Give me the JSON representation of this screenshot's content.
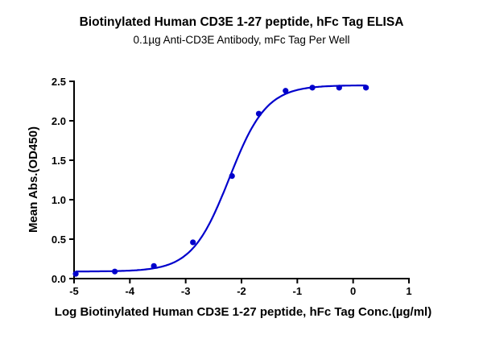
{
  "chart_data": {
    "type": "scatter",
    "title": "Biotinylated Human CD3E 1-27 peptide, hFc Tag ELISA",
    "subtitle": "0.1µg Anti-CD3E Antibody, mFc Tag Per Well",
    "xlabel": "Log Biotinylated Human CD3E 1-27 peptide, hFc Tag Conc.(µg/ml)",
    "ylabel": "Mean Abs.(OD450)",
    "xlim": [
      -5,
      1
    ],
    "ylim": [
      0,
      2.5
    ],
    "xticks": [
      "-5",
      "-4",
      "-3",
      "-2",
      "-1",
      "0",
      "1"
    ],
    "yticks": [
      "0.0",
      "0.5",
      "1.0",
      "1.5",
      "2.0",
      "2.5"
    ],
    "grid": false,
    "fit_curve": "sigmoidal",
    "color": "#0000cc",
    "series": [
      {
        "x": [
          -4.97,
          -4.27,
          -3.57,
          -2.87,
          -2.17,
          -1.69,
          -1.21,
          -0.73,
          -0.25,
          0.23
        ],
        "y": [
          0.06,
          0.09,
          0.16,
          0.46,
          1.3,
          2.09,
          2.38,
          2.42,
          2.42,
          2.42
        ]
      }
    ]
  }
}
